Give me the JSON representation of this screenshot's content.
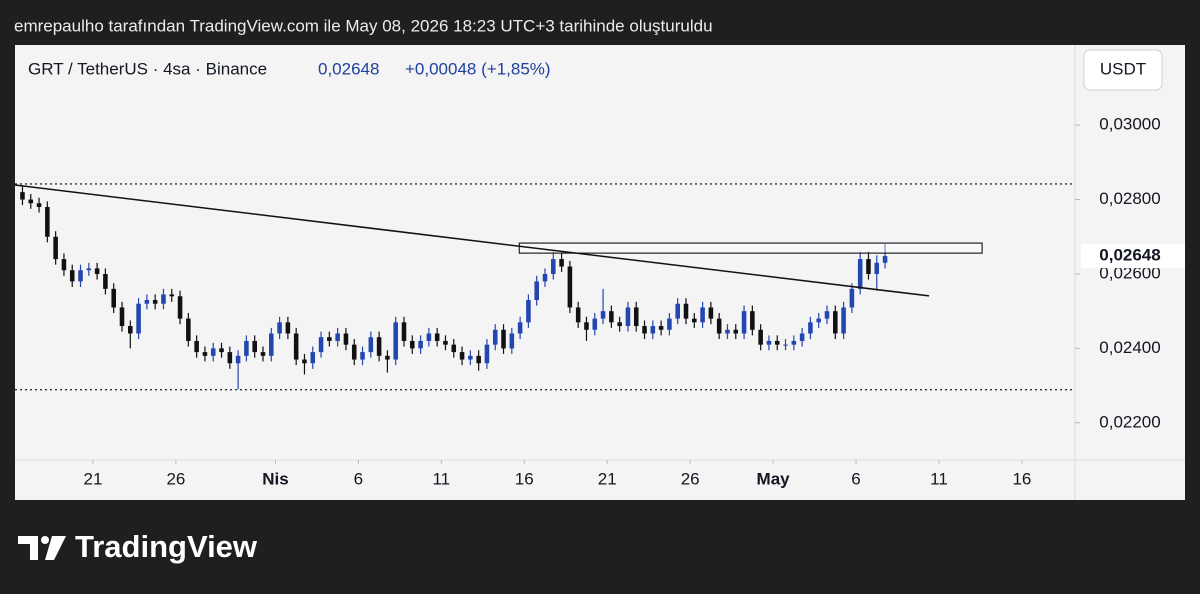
{
  "header": "emrepaulho tarafından TradingView.com ile May 08, 2026 18:23 UTC+3 tarihinde oluşturuldu",
  "footer": {
    "brand": "TradingView"
  },
  "chart_data": {
    "type": "candlestick",
    "legend": {
      "symbol": "GRT / TetherUS · 4sa · Binance",
      "price": "0,02648",
      "change": "+0,00048 (+1,85%)"
    },
    "currency": "USDT",
    "last_price": {
      "value": 0.02648,
      "label": "0,02648"
    },
    "up_color": "#2446b0",
    "down_color": "#111111",
    "xlim": [
      16.3,
      80.2
    ],
    "xticks": [
      21,
      26,
      {
        "value": 32,
        "label": "Nis"
      },
      {
        "value": 37,
        "label": "6"
      },
      {
        "value": 42,
        "label": "11"
      },
      {
        "value": 47,
        "label": "16"
      },
      {
        "value": 52,
        "label": "21"
      },
      {
        "value": 57,
        "label": "26"
      },
      {
        "value": 62,
        "label": "May"
      },
      {
        "value": 67,
        "label": "6"
      },
      {
        "value": 72,
        "label": "11"
      },
      {
        "value": 77,
        "label": "16"
      }
    ],
    "ylim": [
      0.021,
      0.0321
    ],
    "yticks": [
      {
        "value": 0.03,
        "label": "0,03000"
      },
      {
        "value": 0.028,
        "label": "0,02800"
      },
      {
        "value": 0.026,
        "label": "0,02600"
      },
      {
        "value": 0.024,
        "label": "0,02400"
      },
      {
        "value": 0.022,
        "label": "0,02200"
      }
    ],
    "x": [
      16.75,
      17.25,
      17.75,
      18.25,
      18.75,
      19.25,
      19.75,
      20.25,
      20.75,
      21.25,
      21.75,
      22.25,
      22.75,
      23.25,
      23.75,
      24.25,
      24.75,
      25.25,
      25.75,
      26.25,
      26.75,
      27.25,
      27.75,
      28.25,
      28.75,
      29.25,
      29.75,
      30.25,
      30.75,
      31.25,
      31.75,
      32.25,
      32.75,
      33.25,
      33.75,
      34.25,
      34.75,
      35.25,
      35.75,
      36.25,
      36.75,
      37.25,
      37.75,
      38.25,
      38.75,
      39.25,
      39.75,
      40.25,
      40.75,
      41.25,
      41.75,
      42.25,
      42.75,
      43.25,
      43.75,
      44.25,
      44.75,
      45.25,
      45.75,
      46.25,
      46.75,
      47.25,
      47.75,
      48.25,
      48.75,
      49.25,
      49.75,
      50.25,
      50.75,
      51.25,
      51.75,
      52.25,
      52.75,
      53.25,
      53.75,
      54.25,
      54.75,
      55.25,
      55.75,
      56.25,
      56.75,
      57.25,
      57.75,
      58.25,
      58.75,
      59.25,
      59.75,
      60.25,
      60.75,
      61.25,
      61.75,
      62.25,
      62.75,
      63.25,
      63.75,
      64.25,
      64.75,
      65.25,
      65.75,
      66.25,
      66.75,
      67.25,
      67.75,
      68.25,
      68.75
    ],
    "open": [
      0.0282,
      0.028,
      0.0279,
      0.0278,
      0.027,
      0.0264,
      0.0261,
      0.0258,
      0.0261,
      0.02615,
      0.026,
      0.0256,
      0.0251,
      0.0246,
      0.0244,
      0.0252,
      0.0253,
      0.0252,
      0.02545,
      0.0254,
      0.0248,
      0.0242,
      0.0239,
      0.0238,
      0.024,
      0.0239,
      0.0236,
      0.0238,
      0.0242,
      0.0239,
      0.0238,
      0.0244,
      0.0247,
      0.0244,
      0.0237,
      0.0236,
      0.0239,
      0.0243,
      0.0242,
      0.0244,
      0.0241,
      0.0237,
      0.0239,
      0.0243,
      0.0238,
      0.0237,
      0.0247,
      0.0242,
      0.024,
      0.0242,
      0.0244,
      0.0242,
      0.0241,
      0.0239,
      0.0237,
      0.0238,
      0.0236,
      0.0241,
      0.0245,
      0.024,
      0.0244,
      0.0247,
      0.0253,
      0.0258,
      0.026,
      0.0264,
      0.0262,
      0.0251,
      0.0247,
      0.0245,
      0.0248,
      0.025,
      0.0247,
      0.0246,
      0.0251,
      0.0246,
      0.0244,
      0.0246,
      0.0245,
      0.0248,
      0.0252,
      0.0248,
      0.0247,
      0.0251,
      0.0248,
      0.0244,
      0.0245,
      0.0244,
      0.025,
      0.0245,
      0.0241,
      0.0242,
      0.0241,
      0.0241,
      0.0242,
      0.0244,
      0.0247,
      0.0248,
      0.025,
      0.0244,
      0.0251,
      0.0256,
      0.0264,
      0.026,
      0.0263
    ],
    "high": [
      0.02835,
      0.02815,
      0.02805,
      0.02795,
      0.02715,
      0.02655,
      0.02625,
      0.02625,
      0.0263,
      0.0263,
      0.02615,
      0.02575,
      0.02525,
      0.02475,
      0.02535,
      0.02545,
      0.02545,
      0.0256,
      0.0256,
      0.02555,
      0.02495,
      0.02435,
      0.02405,
      0.02415,
      0.02415,
      0.02405,
      0.02395,
      0.02435,
      0.02435,
      0.02405,
      0.02455,
      0.02485,
      0.02485,
      0.02455,
      0.02385,
      0.02405,
      0.02445,
      0.02445,
      0.02455,
      0.02455,
      0.02425,
      0.02405,
      0.02445,
      0.02445,
      0.02395,
      0.02485,
      0.02485,
      0.02435,
      0.02435,
      0.02455,
      0.02455,
      0.02435,
      0.02425,
      0.02405,
      0.02395,
      0.02395,
      0.02425,
      0.02465,
      0.02465,
      0.02455,
      0.02485,
      0.02545,
      0.02595,
      0.02615,
      0.0266,
      0.0266,
      0.02635,
      0.02525,
      0.02485,
      0.02495,
      0.0256,
      0.02515,
      0.02485,
      0.02525,
      0.02525,
      0.02475,
      0.02475,
      0.02475,
      0.02495,
      0.02535,
      0.02535,
      0.02495,
      0.02525,
      0.02525,
      0.02495,
      0.02465,
      0.02465,
      0.02515,
      0.02515,
      0.02465,
      0.02435,
      0.02435,
      0.02425,
      0.02435,
      0.02455,
      0.02485,
      0.02495,
      0.02515,
      0.02515,
      0.02525,
      0.02575,
      0.0266,
      0.0266,
      0.0265,
      0.0268
    ],
    "low": [
      0.02785,
      0.02775,
      0.02765,
      0.02685,
      0.02625,
      0.02595,
      0.02565,
      0.02565,
      0.02595,
      0.02585,
      0.02545,
      0.02495,
      0.02445,
      0.024,
      0.02425,
      0.02505,
      0.02505,
      0.02505,
      0.02525,
      0.02465,
      0.02405,
      0.02375,
      0.02365,
      0.02365,
      0.02375,
      0.02345,
      0.0229,
      0.02365,
      0.02375,
      0.02365,
      0.02365,
      0.02425,
      0.02425,
      0.02355,
      0.0233,
      0.02345,
      0.02375,
      0.02405,
      0.02405,
      0.02395,
      0.02355,
      0.02355,
      0.02375,
      0.02365,
      0.02335,
      0.02355,
      0.02405,
      0.02385,
      0.02385,
      0.02405,
      0.02405,
      0.02395,
      0.02375,
      0.02355,
      0.02355,
      0.0234,
      0.02345,
      0.02395,
      0.02385,
      0.02385,
      0.02425,
      0.02455,
      0.02515,
      0.02565,
      0.02585,
      0.02605,
      0.02495,
      0.02455,
      0.0242,
      0.02435,
      0.02465,
      0.02455,
      0.02445,
      0.02445,
      0.02445,
      0.02425,
      0.02425,
      0.02435,
      0.02435,
      0.02465,
      0.02465,
      0.02455,
      0.02455,
      0.02465,
      0.02425,
      0.02425,
      0.02425,
      0.02425,
      0.02435,
      0.02395,
      0.02395,
      0.02395,
      0.02395,
      0.02395,
      0.02405,
      0.02425,
      0.02455,
      0.02465,
      0.02425,
      0.02425,
      0.02495,
      0.02545,
      0.02585,
      0.02555,
      0.02615
    ],
    "close": [
      0.028,
      0.0279,
      0.0278,
      0.027,
      0.0264,
      0.0261,
      0.0258,
      0.0261,
      0.02615,
      0.026,
      0.0256,
      0.0251,
      0.0246,
      0.0244,
      0.0252,
      0.0253,
      0.0252,
      0.02545,
      0.0254,
      0.0248,
      0.0242,
      0.0239,
      0.0238,
      0.024,
      0.0239,
      0.0236,
      0.0238,
      0.0242,
      0.0239,
      0.0238,
      0.0244,
      0.0247,
      0.0244,
      0.0237,
      0.0236,
      0.0239,
      0.0243,
      0.0242,
      0.0244,
      0.0241,
      0.0237,
      0.0239,
      0.0243,
      0.0238,
      0.0237,
      0.0247,
      0.0242,
      0.024,
      0.0242,
      0.0244,
      0.0242,
      0.0241,
      0.0239,
      0.0237,
      0.0238,
      0.0236,
      0.0241,
      0.0245,
      0.024,
      0.0244,
      0.0247,
      0.0253,
      0.0258,
      0.026,
      0.0264,
      0.0262,
      0.0251,
      0.0247,
      0.0245,
      0.0248,
      0.025,
      0.0247,
      0.0246,
      0.0251,
      0.0246,
      0.0244,
      0.0246,
      0.0245,
      0.0248,
      0.0252,
      0.0248,
      0.0247,
      0.0251,
      0.0248,
      0.0244,
      0.0245,
      0.0244,
      0.025,
      0.0245,
      0.0241,
      0.0242,
      0.0241,
      0.0241,
      0.0242,
      0.0244,
      0.0247,
      0.0248,
      0.025,
      0.0244,
      0.0251,
      0.0256,
      0.0264,
      0.026,
      0.0263,
      0.02648
    ],
    "horizontal_lines": [
      0.02842,
      0.02289
    ],
    "trend_line": {
      "x": [
        16.3,
        71.4
      ],
      "y": [
        0.02839,
        0.02541
      ]
    },
    "rectangle": {
      "x": [
        46.7,
        74.6
      ],
      "y": [
        0.02656,
        0.02683
      ]
    }
  }
}
